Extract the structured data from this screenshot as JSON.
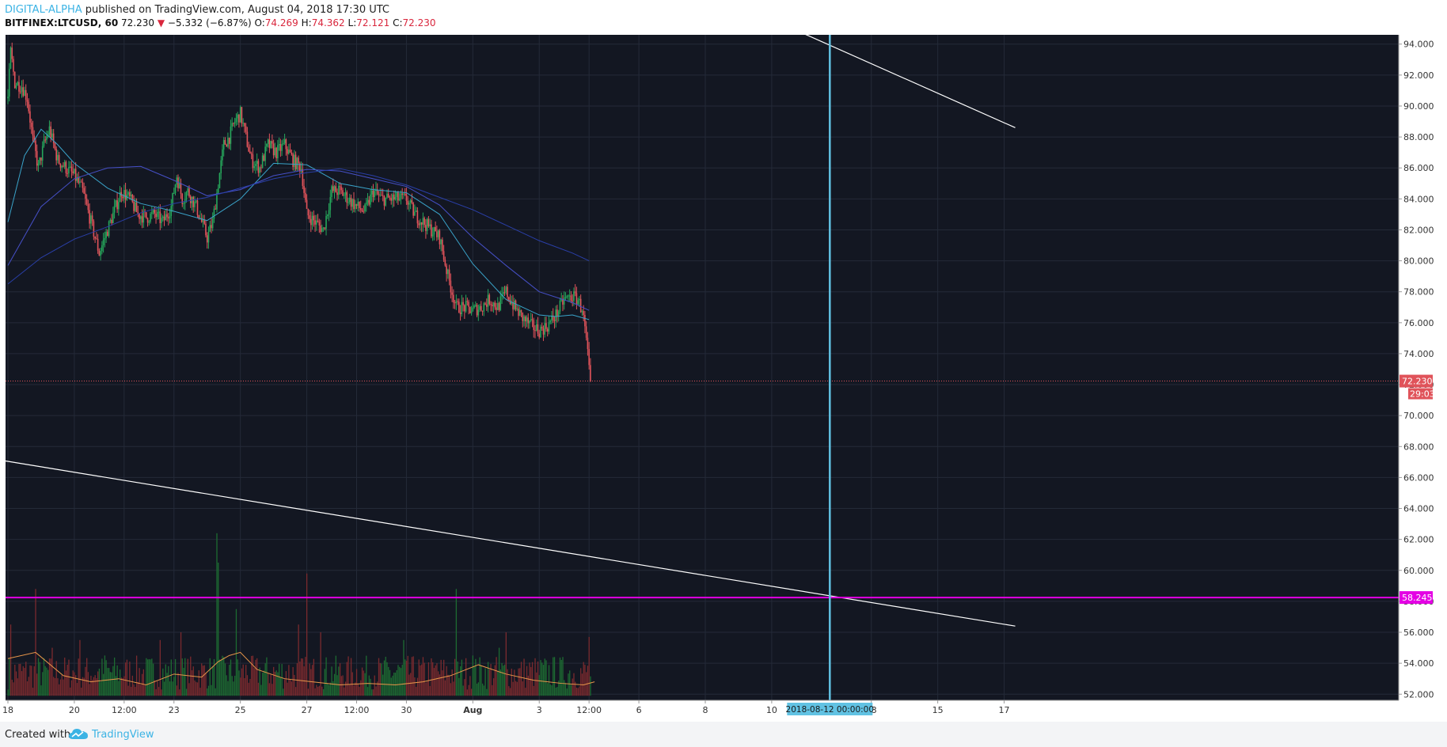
{
  "header": {
    "author": "DIGITAL-ALPHA",
    "published_text": " published on TradingView.com, August 04, 2018 17:30 UTC",
    "symbol": "BITFINEX:LTCUSD, 60",
    "last": "72.230",
    "arrow": "▼",
    "change": "−5.332 (−6.87%)",
    "o_label": "O:",
    "o_value": "74.269",
    "h_label": "H:",
    "h_value": "74.362",
    "l_label": "L:",
    "l_value": "72.121",
    "c_label": "C:",
    "c_value": "72.230"
  },
  "footer": {
    "created_with": "Created with",
    "brand": "TradingView"
  },
  "colors": {
    "background": "#131722",
    "up": "#26a65b",
    "down": "#e0535a",
    "ma_fast": "#3aa3c9",
    "ma_mid": "#4650c8",
    "ma_slow": "#2a3fa8",
    "trendline": "#ffffff",
    "support": "#e400e4",
    "vertical_marker": "#61c2e3",
    "last_price": "#e0535a",
    "volume_ma": "#e8964a"
  },
  "chart_data": {
    "type": "candlestick",
    "ylim": [
      51.6,
      94.6
    ],
    "y_ticks": [
      "94.000",
      "92.000",
      "90.000",
      "88.000",
      "86.000",
      "84.000",
      "82.000",
      "80.000",
      "78.000",
      "76.000",
      "74.000",
      "72.000",
      "70.000",
      "68.000",
      "66.000",
      "64.000",
      "62.000",
      "60.000",
      "58.000",
      "56.000",
      "54.000",
      "52.000"
    ],
    "x_ticks": [
      {
        "label": "18",
        "t": 0
      },
      {
        "label": "20",
        "t": 48
      },
      {
        "label": "12:00",
        "t": 84
      },
      {
        "label": "23",
        "t": 120
      },
      {
        "label": "25",
        "t": 168
      },
      {
        "label": "27",
        "t": 216
      },
      {
        "label": "12:00",
        "t": 252
      },
      {
        "label": "30",
        "t": 288
      },
      {
        "label": "Aug",
        "t": 336
      },
      {
        "label": "3",
        "t": 384
      },
      {
        "label": "12:00",
        "t": 420
      },
      {
        "label": "6",
        "t": 456
      },
      {
        "label": "8",
        "t": 504
      },
      {
        "label": "10",
        "t": 552
      },
      {
        "label": "13",
        "t": 624
      },
      {
        "label": "15",
        "t": 672
      },
      {
        "label": "17",
        "t": 720
      }
    ],
    "price_keypoints": [
      [
        0,
        90.5
      ],
      [
        2,
        93.5
      ],
      [
        5,
        91.5
      ],
      [
        10,
        91.3
      ],
      [
        14,
        90.5
      ],
      [
        18,
        87.8
      ],
      [
        22,
        86
      ],
      [
        26,
        87.5
      ],
      [
        30,
        88.5
      ],
      [
        36,
        86.5
      ],
      [
        42,
        86
      ],
      [
        48,
        85.5
      ],
      [
        54,
        84.5
      ],
      [
        60,
        82.5
      ],
      [
        66,
        80.5
      ],
      [
        70,
        81.5
      ],
      [
        76,
        83
      ],
      [
        82,
        84.5
      ],
      [
        88,
        84
      ],
      [
        94,
        83
      ],
      [
        100,
        82.8
      ],
      [
        106,
        83
      ],
      [
        112,
        82.5
      ],
      [
        118,
        83.5
      ],
      [
        122,
        85.5
      ],
      [
        126,
        84
      ],
      [
        130,
        84.5
      ],
      [
        136,
        83.5
      ],
      [
        140,
        82.5
      ],
      [
        144,
        81.5
      ],
      [
        148,
        82.5
      ],
      [
        152,
        85
      ],
      [
        156,
        87.5
      ],
      [
        160,
        88
      ],
      [
        164,
        89
      ],
      [
        168,
        89.5
      ],
      [
        172,
        88
      ],
      [
        176,
        86.5
      ],
      [
        182,
        86
      ],
      [
        188,
        87.5
      ],
      [
        194,
        87
      ],
      [
        200,
        87.5
      ],
      [
        206,
        86.5
      ],
      [
        212,
        86
      ],
      [
        216,
        83
      ],
      [
        222,
        82.5
      ],
      [
        228,
        82
      ],
      [
        234,
        84.5
      ],
      [
        240,
        84.5
      ],
      [
        246,
        84
      ],
      [
        252,
        83.5
      ],
      [
        258,
        83.2
      ],
      [
        264,
        84.5
      ],
      [
        270,
        84
      ],
      [
        276,
        84
      ],
      [
        282,
        84
      ],
      [
        288,
        84
      ],
      [
        294,
        83
      ],
      [
        300,
        82.5
      ],
      [
        306,
        82
      ],
      [
        312,
        81.5
      ],
      [
        318,
        79
      ],
      [
        324,
        77
      ],
      [
        330,
        77
      ],
      [
        336,
        76.8
      ],
      [
        342,
        77
      ],
      [
        348,
        77.5
      ],
      [
        354,
        77
      ],
      [
        360,
        78
      ],
      [
        366,
        77
      ],
      [
        372,
        76.3
      ],
      [
        378,
        75.8
      ],
      [
        384,
        75.5
      ],
      [
        390,
        75.8
      ],
      [
        396,
        76.5
      ],
      [
        402,
        77.5
      ],
      [
        408,
        77.7
      ],
      [
        412,
        77.5
      ],
      [
        416,
        76.5
      ],
      [
        419,
        74.3
      ],
      [
        421,
        72.23
      ]
    ],
    "moving_averages": [
      {
        "points": [
          [
            0,
            82.5
          ],
          [
            12,
            86.8
          ],
          [
            24,
            88.5
          ],
          [
            36,
            87.5
          ],
          [
            48,
            86.3
          ],
          [
            72,
            84.7
          ],
          [
            96,
            83.7
          ],
          [
            120,
            83.2
          ],
          [
            144,
            82.6
          ],
          [
            168,
            84
          ],
          [
            192,
            86.3
          ],
          [
            216,
            86.2
          ],
          [
            240,
            85
          ],
          [
            264,
            84.6
          ],
          [
            288,
            84.4
          ],
          [
            312,
            83
          ],
          [
            336,
            79.8
          ],
          [
            360,
            77.5
          ],
          [
            384,
            76.5
          ],
          [
            396,
            76.4
          ],
          [
            408,
            76.5
          ],
          [
            420,
            76.2
          ]
        ]
      },
      {
        "points": [
          [
            0,
            79.7
          ],
          [
            24,
            83.5
          ],
          [
            48,
            85.3
          ],
          [
            72,
            86
          ],
          [
            96,
            86.1
          ],
          [
            120,
            85.2
          ],
          [
            144,
            84.2
          ],
          [
            168,
            84.6
          ],
          [
            192,
            85.5
          ],
          [
            216,
            85.9
          ],
          [
            240,
            85.8
          ],
          [
            264,
            85.3
          ],
          [
            288,
            84.8
          ],
          [
            312,
            83.6
          ],
          [
            336,
            81.5
          ],
          [
            360,
            79.7
          ],
          [
            384,
            78
          ],
          [
            408,
            77.3
          ],
          [
            420,
            76.8
          ]
        ]
      },
      {
        "points": [
          [
            0,
            78.5
          ],
          [
            24,
            80.2
          ],
          [
            48,
            81.4
          ],
          [
            72,
            82.2
          ],
          [
            96,
            83.1
          ],
          [
            120,
            83.7
          ],
          [
            144,
            84.1
          ],
          [
            168,
            84.7
          ],
          [
            192,
            85.3
          ],
          [
            216,
            85.7
          ],
          [
            240,
            85.95
          ],
          [
            264,
            85.5
          ],
          [
            288,
            84.9
          ],
          [
            312,
            84.1
          ],
          [
            336,
            83.3
          ],
          [
            360,
            82.3
          ],
          [
            384,
            81.3
          ],
          [
            408,
            80.5
          ],
          [
            420,
            80
          ]
        ]
      }
    ],
    "trendlines": [
      {
        "from": [
          -4,
          67.1
        ],
        "to": [
          728,
          56.4
        ]
      },
      {
        "from": [
          562,
          95.2
        ],
        "to": [
          728,
          88.6
        ]
      }
    ],
    "support_level": {
      "value": 58.245,
      "label": "58.245"
    },
    "last_price": {
      "value": 72.23,
      "label": "72.230",
      "countdown": "29:03"
    },
    "vertical_marker": {
      "t": 594,
      "label": "2018-08-12 00:00:00"
    },
    "volume": {
      "base": 51.9,
      "scale_max": 62.5
    },
    "volume_spikes": [
      [
        2,
        56.5
      ],
      [
        20,
        58.8
      ],
      [
        32,
        55
      ],
      [
        52,
        55.5
      ],
      [
        70,
        54.5
      ],
      [
        110,
        55.5
      ],
      [
        125,
        56
      ],
      [
        151,
        62.4
      ],
      [
        152,
        60.5
      ],
      [
        165,
        57.5
      ],
      [
        210,
        56.5
      ],
      [
        216,
        59.8
      ],
      [
        226,
        56
      ],
      [
        286,
        55.5
      ],
      [
        310,
        54
      ],
      [
        324,
        58.8
      ],
      [
        336,
        54.5
      ],
      [
        355,
        55
      ],
      [
        360,
        56
      ],
      [
        420,
        55.7
      ],
      [
        422,
        56.2
      ],
      [
        424,
        55.5
      ]
    ],
    "volume_ma_points": [
      [
        0,
        54.3
      ],
      [
        20,
        54.7
      ],
      [
        40,
        53.2
      ],
      [
        60,
        52.8
      ],
      [
        80,
        53
      ],
      [
        100,
        52.6
      ],
      [
        120,
        53.3
      ],
      [
        140,
        53.1
      ],
      [
        152,
        54.1
      ],
      [
        160,
        54.5
      ],
      [
        168,
        54.7
      ],
      [
        180,
        53.6
      ],
      [
        200,
        53.0
      ],
      [
        220,
        52.8
      ],
      [
        240,
        52.6
      ],
      [
        260,
        52.7
      ],
      [
        280,
        52.6
      ],
      [
        300,
        52.8
      ],
      [
        320,
        53.2
      ],
      [
        340,
        53.9
      ],
      [
        360,
        53.3
      ],
      [
        380,
        52.9
      ],
      [
        400,
        52.7
      ],
      [
        416,
        52.6
      ],
      [
        424,
        52.8
      ]
    ]
  }
}
